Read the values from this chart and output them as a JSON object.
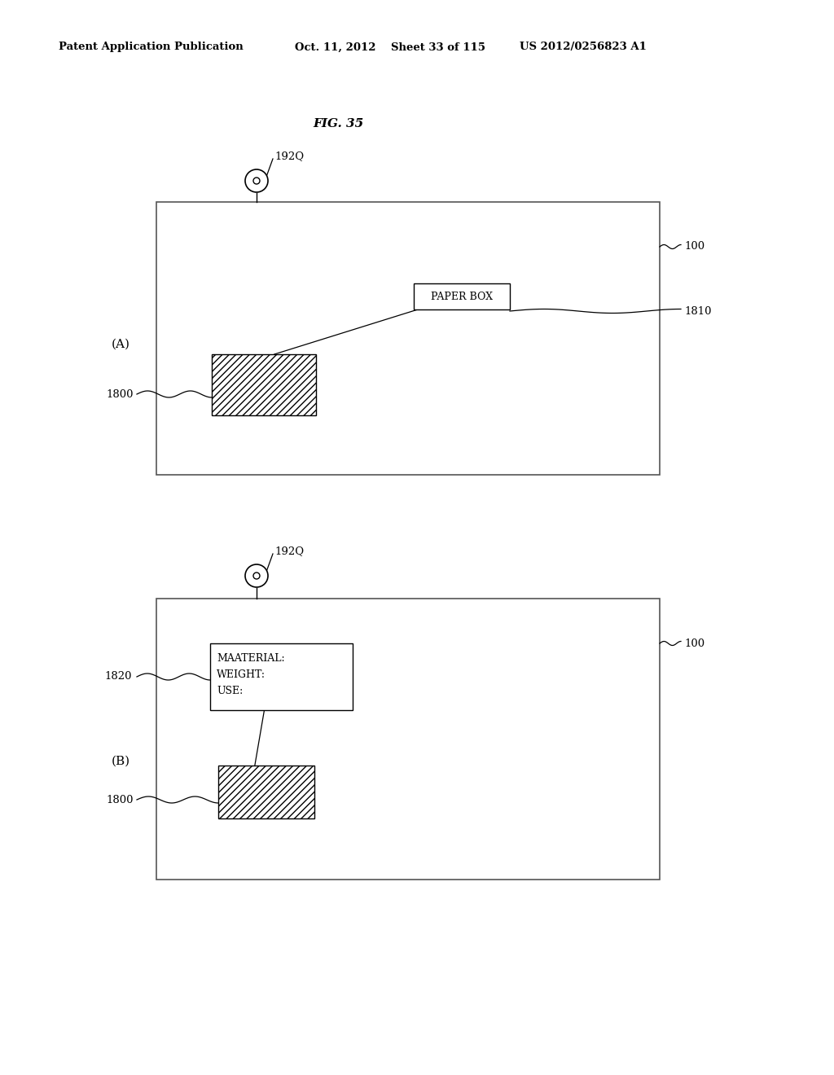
{
  "bg_color": "#ffffff",
  "header_text": "Patent Application Publication",
  "header_date": "Oct. 11, 2012",
  "header_sheet": "Sheet 33 of 115",
  "header_patent": "US 2012/0256823 A1",
  "fig_title": "FIG. 35",
  "panel_A_label": "(A)",
  "panel_B_label": "(B)",
  "label_192Q": "192Q",
  "label_100": "100",
  "label_1810": "1810",
  "label_1800_A": "1800",
  "label_1800_B": "1800",
  "label_1820": "1820",
  "paperbox_text": "PAPER BOX",
  "info_box_text": "MAATERIAL:\nWEIGHT:\nUSE:"
}
